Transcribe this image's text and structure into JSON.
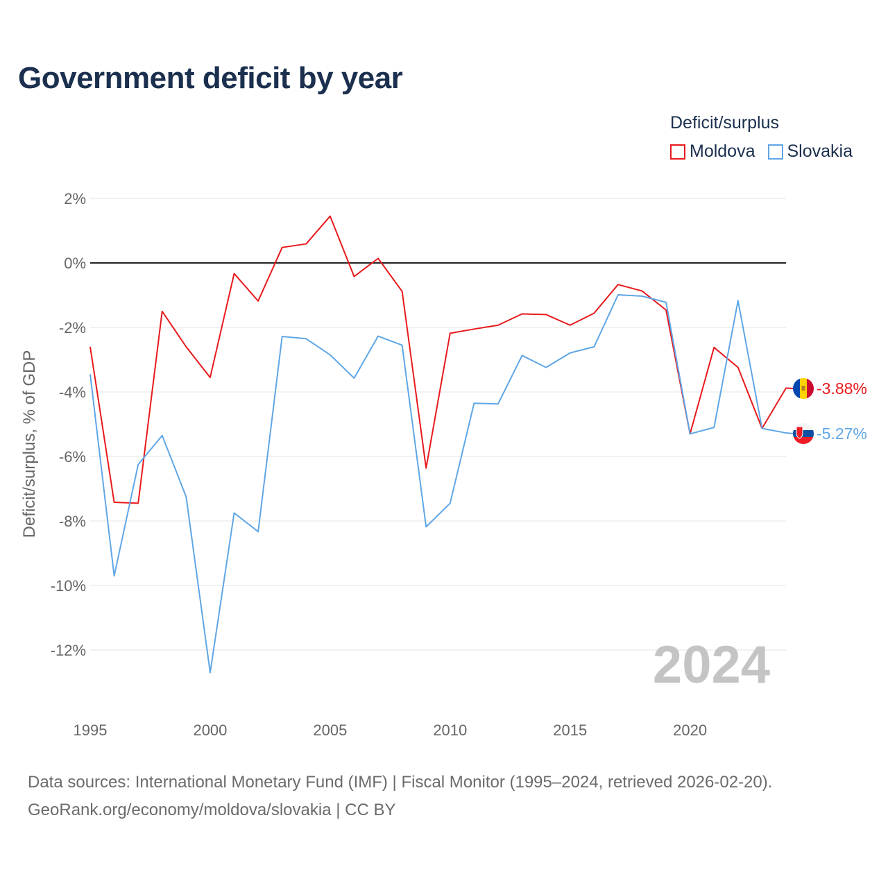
{
  "title": "Government deficit by year",
  "legend": {
    "title": "Deficit/surplus",
    "items": [
      {
        "name": "Moldova",
        "color": "#e8191c"
      },
      {
        "name": "Slovakia",
        "color": "#5fa6e6"
      }
    ]
  },
  "chart_data": {
    "type": "line",
    "title": "Government deficit by year",
    "xlabel": "",
    "ylabel": "Deficit/surplus, % of GDP",
    "xlim": [
      1995,
      2024
    ],
    "ylim": [
      -14,
      2
    ],
    "x_ticks": [
      1995,
      2000,
      2005,
      2010,
      2015,
      2020
    ],
    "y_ticks": [
      2,
      0,
      -2,
      -4,
      -6,
      -8,
      -10,
      -12
    ],
    "y_tick_labels": [
      "2%",
      "0%",
      "-2%",
      "-4%",
      "-6%",
      "-8%",
      "-10%",
      "-12%"
    ],
    "x": [
      1995,
      1996,
      1997,
      1998,
      1999,
      2000,
      2001,
      2002,
      2003,
      2004,
      2005,
      2006,
      2007,
      2008,
      2009,
      2010,
      2011,
      2012,
      2013,
      2014,
      2015,
      2016,
      2017,
      2018,
      2019,
      2020,
      2021,
      2022,
      2023,
      2024
    ],
    "series": [
      {
        "name": "Moldova",
        "color": "#e8191c",
        "values": [
          -2.6,
          -7.42,
          -7.45,
          -1.5,
          -2.6,
          -3.55,
          -0.33,
          -1.18,
          0.48,
          0.59,
          1.45,
          -0.42,
          0.14,
          -0.88,
          -6.36,
          -2.18,
          -2.05,
          -1.93,
          -1.58,
          -1.6,
          -1.93,
          -1.56,
          -0.67,
          -0.87,
          -1.46,
          -5.3,
          -2.62,
          -3.24,
          -5.13,
          -3.88
        ],
        "end_label": "-3.88%"
      },
      {
        "name": "Slovakia",
        "color": "#5fa6e6",
        "values": [
          -3.45,
          -9.7,
          -6.25,
          -5.35,
          -7.25,
          -12.7,
          -7.75,
          -8.33,
          -2.28,
          -2.35,
          -2.85,
          -3.57,
          -2.27,
          -2.55,
          -8.18,
          -7.45,
          -4.35,
          -4.37,
          -2.87,
          -3.24,
          -2.79,
          -2.6,
          -0.99,
          -1.03,
          -1.22,
          -5.3,
          -5.1,
          -1.17,
          -5.13,
          -5.27
        ],
        "end_label": "-5.27%"
      }
    ],
    "highlight_year": "2024"
  },
  "footer": {
    "line1": "Data sources: International Monetary Fund (IMF) | Fiscal Monitor (1995–2024, retrieved 2026-02-20).",
    "line2": "GeoRank.org/economy/moldova/slovakia | CC BY"
  },
  "flags": {
    "moldova": "moldova-flag-icon",
    "slovakia": "slovakia-flag-icon"
  }
}
